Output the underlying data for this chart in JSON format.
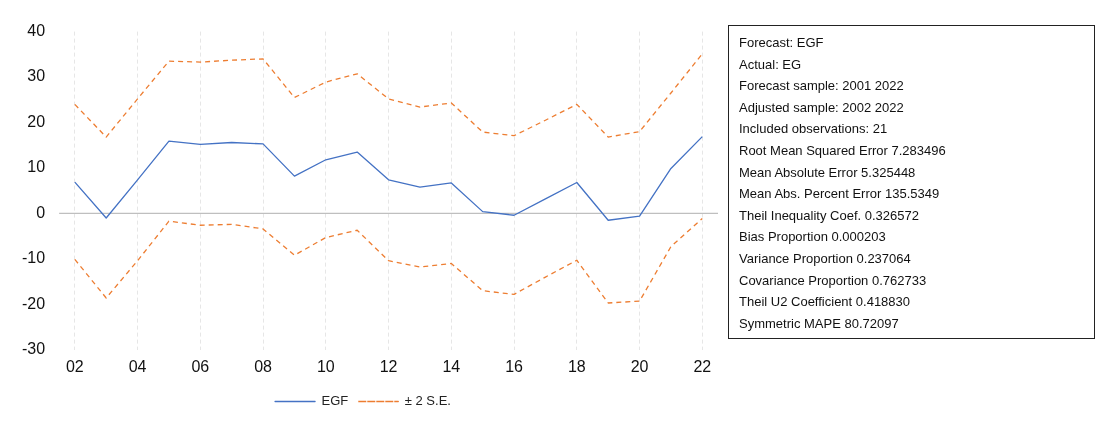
{
  "chart_data": {
    "type": "line",
    "categories": [
      "02",
      null,
      "04",
      null,
      "06",
      null,
      "08",
      null,
      "10",
      null,
      "12",
      null,
      "14",
      null,
      "16",
      null,
      "18",
      null,
      "20",
      null,
      "22"
    ],
    "series": [
      {
        "name": "EGF",
        "color": "#4472c4",
        "line_style": "solid",
        "values": [
          6.9,
          -1.0,
          7.4,
          15.9,
          15.2,
          15.6,
          15.3,
          8.2,
          11.8,
          13.5,
          7.4,
          5.8,
          6.7,
          0.4,
          -0.4,
          3.2,
          6.8,
          -1.5,
          -0.6,
          9.9,
          16.9
        ]
      },
      {
        "name": "± 2 S.E.",
        "color": "#ed7d31",
        "line_style": "dashed",
        "values": [
          24.0,
          16.8,
          25.2,
          33.5,
          33.3,
          33.7,
          34.0,
          25.5,
          28.9,
          30.7,
          25.2,
          23.4,
          24.3,
          17.9,
          17.1,
          20.5,
          24.0,
          16.8,
          18.0,
          26.5,
          35.1
        ]
      },
      {
        "color": "#ed7d31",
        "line_style": "dashed",
        "values": [
          -10.1,
          -18.6,
          -10.4,
          -1.7,
          -2.6,
          -2.4,
          -3.4,
          -9.2,
          -5.3,
          -3.7,
          -10.4,
          -11.8,
          -11.0,
          -17.0,
          -17.8,
          -14.0,
          -10.3,
          -19.7,
          -19.3,
          -7.3,
          -1.1
        ]
      }
    ],
    "ylim": [
      -30,
      40
    ],
    "yticks": [
      -30,
      -20,
      -10,
      0,
      10,
      20,
      30,
      40
    ],
    "grid": "x",
    "legend": "bottom",
    "marker": "none",
    "ref_lines": [
      {
        "axis": "y",
        "value": 0,
        "color": "#bfbfbf"
      }
    ],
    "annotations": [
      "Forecast: EGF",
      "Actual: EG",
      "Forecast sample: 2001 2022",
      "Adjusted sample: 2002 2022",
      "Included observations: 21",
      "Root Mean Squared Error 7.283496",
      "Mean Absolute Error 5.325448",
      "Mean Abs. Percent Error 135.5349",
      "Theil Inequality Coef. 0.326572",
      "Bias Proportion 0.000203",
      "Variance Proportion 0.237064",
      "Covariance Proportion 0.762733",
      "Theil U2 Coefficient 0.418830",
      "Symmetric MAPE 80.72097"
    ]
  }
}
